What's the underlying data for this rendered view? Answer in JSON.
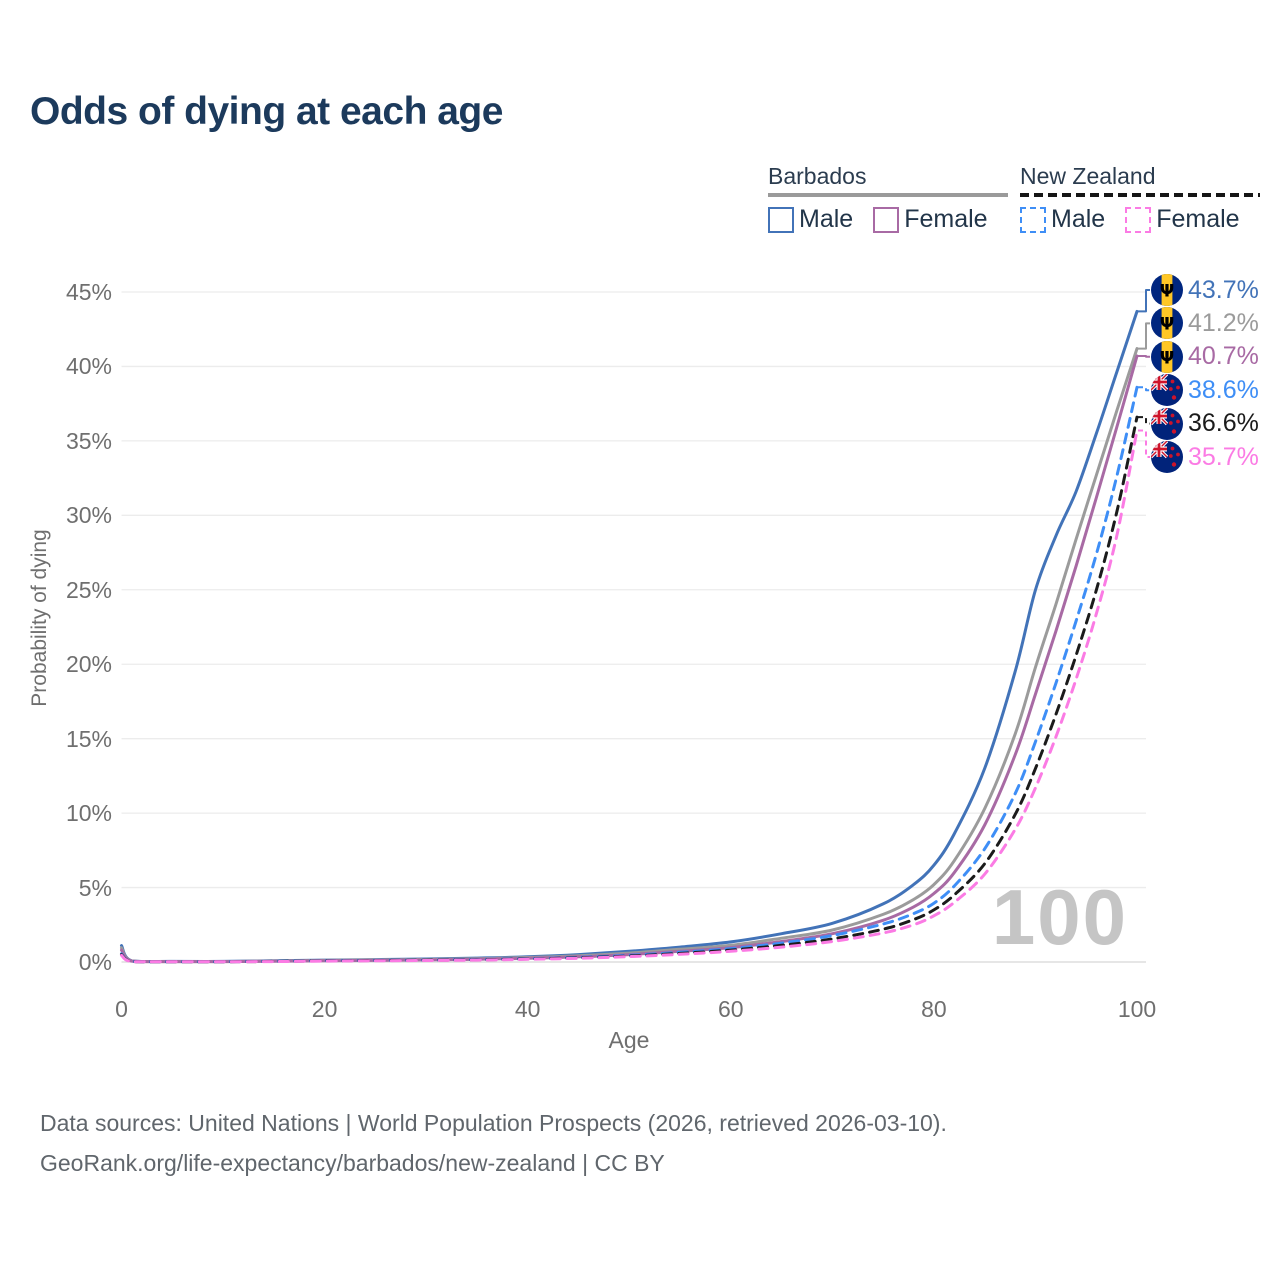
{
  "title": "Odds of dying at each age",
  "legend": {
    "groups": [
      {
        "label": "Barbados",
        "line_style": "solid",
        "underline_color": "#9a9a9a",
        "items": [
          {
            "label": "Male",
            "color": "#4273b8",
            "dashed": false
          },
          {
            "label": "Female",
            "color": "#a86aa4",
            "dashed": false
          }
        ]
      },
      {
        "label": "New Zealand",
        "line_style": "dashed",
        "underline_color": "#151515",
        "items": [
          {
            "label": "Male",
            "color": "#3e8ef6",
            "dashed": true
          },
          {
            "label": "Female",
            "color": "#fb7be4",
            "dashed": true
          }
        ]
      }
    ]
  },
  "chart_data": {
    "type": "line",
    "title": "Odds of dying at each age",
    "xlabel": "Age",
    "ylabel": "Probability of dying",
    "xlim": [
      0,
      100
    ],
    "ylim": [
      0,
      45
    ],
    "x_ticks": [
      {
        "v": 0,
        "label": "0"
      },
      {
        "v": 20,
        "label": "20"
      },
      {
        "v": 40,
        "label": "40"
      },
      {
        "v": 60,
        "label": "60"
      },
      {
        "v": 80,
        "label": "80"
      },
      {
        "v": 100,
        "label": "100"
      }
    ],
    "y_ticks": [
      {
        "v": 0,
        "label": "0%"
      },
      {
        "v": 5,
        "label": "5%"
      },
      {
        "v": 10,
        "label": "10%"
      },
      {
        "v": 15,
        "label": "15%"
      },
      {
        "v": 20,
        "label": "20%"
      },
      {
        "v": 25,
        "label": "25%"
      },
      {
        "v": 30,
        "label": "30%"
      },
      {
        "v": 35,
        "label": "35%"
      },
      {
        "v": 40,
        "label": "40%"
      },
      {
        "v": 45,
        "label": "45%"
      }
    ],
    "grid": "horizontal",
    "legend_position": "top-right",
    "watermark": "100",
    "series": [
      {
        "name": "Barbados Male",
        "country": "Barbados",
        "sex": "Male",
        "flag": "barbados",
        "color": "#4273b8",
        "dashed": false,
        "end_value": 43.7,
        "end_label": "43.7%",
        "points": [
          [
            0,
            1.1
          ],
          [
            1,
            0.08
          ],
          [
            5,
            0.04
          ],
          [
            10,
            0.04
          ],
          [
            15,
            0.08
          ],
          [
            20,
            0.13
          ],
          [
            25,
            0.16
          ],
          [
            30,
            0.2
          ],
          [
            35,
            0.26
          ],
          [
            40,
            0.35
          ],
          [
            45,
            0.5
          ],
          [
            50,
            0.72
          ],
          [
            55,
            1.0
          ],
          [
            60,
            1.35
          ],
          [
            65,
            1.9
          ],
          [
            70,
            2.6
          ],
          [
            75,
            3.9
          ],
          [
            78,
            5.2
          ],
          [
            80,
            6.5
          ],
          [
            82,
            8.6
          ],
          [
            85,
            13.0
          ],
          [
            88,
            19.5
          ],
          [
            90,
            25.0
          ],
          [
            92,
            28.6
          ],
          [
            94,
            31.6
          ],
          [
            96,
            35.5
          ],
          [
            98,
            39.6
          ],
          [
            100,
            43.7
          ]
        ]
      },
      {
        "name": "Barbados Both sexes",
        "country": "Barbados",
        "sex": "Both",
        "flag": "barbados",
        "color": "#9b9b9b",
        "dashed": false,
        "end_value": 41.2,
        "end_label": "41.2%",
        "points": [
          [
            0,
            0.95
          ],
          [
            1,
            0.07
          ],
          [
            5,
            0.03
          ],
          [
            10,
            0.03
          ],
          [
            15,
            0.07
          ],
          [
            20,
            0.11
          ],
          [
            25,
            0.14
          ],
          [
            30,
            0.17
          ],
          [
            35,
            0.22
          ],
          [
            40,
            0.3
          ],
          [
            45,
            0.42
          ],
          [
            50,
            0.6
          ],
          [
            55,
            0.85
          ],
          [
            60,
            1.12
          ],
          [
            65,
            1.6
          ],
          [
            70,
            2.15
          ],
          [
            75,
            3.2
          ],
          [
            78,
            4.2
          ],
          [
            80,
            5.2
          ],
          [
            82,
            6.8
          ],
          [
            85,
            10.3
          ],
          [
            88,
            15.3
          ],
          [
            90,
            19.8
          ],
          [
            92,
            24.0
          ],
          [
            94,
            28.4
          ],
          [
            96,
            32.7
          ],
          [
            98,
            37.0
          ],
          [
            100,
            41.2
          ]
        ]
      },
      {
        "name": "Barbados Female",
        "country": "Barbados",
        "sex": "Female",
        "flag": "barbados",
        "color": "#a86aa4",
        "dashed": false,
        "end_value": 40.7,
        "end_label": "40.7%",
        "points": [
          [
            0,
            0.8
          ],
          [
            1,
            0.06
          ],
          [
            5,
            0.03
          ],
          [
            10,
            0.03
          ],
          [
            15,
            0.05
          ],
          [
            20,
            0.08
          ],
          [
            25,
            0.11
          ],
          [
            30,
            0.14
          ],
          [
            35,
            0.18
          ],
          [
            40,
            0.25
          ],
          [
            45,
            0.35
          ],
          [
            50,
            0.5
          ],
          [
            55,
            0.72
          ],
          [
            60,
            0.97
          ],
          [
            65,
            1.38
          ],
          [
            70,
            1.9
          ],
          [
            75,
            2.8
          ],
          [
            78,
            3.7
          ],
          [
            80,
            4.6
          ],
          [
            82,
            6.0
          ],
          [
            85,
            9.2
          ],
          [
            88,
            13.9
          ],
          [
            90,
            18.0
          ],
          [
            92,
            22.2
          ],
          [
            94,
            26.6
          ],
          [
            96,
            31.2
          ],
          [
            98,
            35.9
          ],
          [
            100,
            40.7
          ]
        ]
      },
      {
        "name": "New Zealand Male",
        "country": "New Zealand",
        "sex": "Male",
        "flag": "nz",
        "color": "#3e8ef6",
        "dashed": true,
        "end_value": 38.6,
        "end_label": "38.6%",
        "points": [
          [
            0,
            0.55
          ],
          [
            1,
            0.04
          ],
          [
            5,
            0.02
          ],
          [
            10,
            0.02
          ],
          [
            15,
            0.05
          ],
          [
            20,
            0.09
          ],
          [
            25,
            0.11
          ],
          [
            30,
            0.13
          ],
          [
            35,
            0.17
          ],
          [
            40,
            0.22
          ],
          [
            45,
            0.31
          ],
          [
            50,
            0.45
          ],
          [
            55,
            0.65
          ],
          [
            60,
            0.9
          ],
          [
            65,
            1.27
          ],
          [
            70,
            1.78
          ],
          [
            75,
            2.55
          ],
          [
            78,
            3.25
          ],
          [
            80,
            3.95
          ],
          [
            82,
            5.1
          ],
          [
            85,
            7.6
          ],
          [
            88,
            11.3
          ],
          [
            90,
            14.8
          ],
          [
            92,
            18.7
          ],
          [
            94,
            22.9
          ],
          [
            96,
            27.4
          ],
          [
            98,
            32.6
          ],
          [
            100,
            38.6
          ]
        ]
      },
      {
        "name": "New Zealand Both sexes",
        "country": "New Zealand",
        "sex": "Both",
        "flag": "nz",
        "color": "#1b1b1b",
        "dashed": true,
        "end_value": 36.6,
        "end_label": "36.6%",
        "points": [
          [
            0,
            0.5
          ],
          [
            1,
            0.04
          ],
          [
            5,
            0.02
          ],
          [
            10,
            0.02
          ],
          [
            15,
            0.04
          ],
          [
            20,
            0.08
          ],
          [
            25,
            0.1
          ],
          [
            30,
            0.12
          ],
          [
            35,
            0.15
          ],
          [
            40,
            0.2
          ],
          [
            45,
            0.28
          ],
          [
            50,
            0.4
          ],
          [
            55,
            0.58
          ],
          [
            60,
            0.8
          ],
          [
            65,
            1.12
          ],
          [
            70,
            1.55
          ],
          [
            75,
            2.2
          ],
          [
            78,
            2.85
          ],
          [
            80,
            3.5
          ],
          [
            82,
            4.5
          ],
          [
            85,
            6.6
          ],
          [
            88,
            9.9
          ],
          [
            90,
            13.0
          ],
          [
            92,
            16.6
          ],
          [
            94,
            20.6
          ],
          [
            96,
            25.0
          ],
          [
            98,
            30.2
          ],
          [
            100,
            36.6
          ]
        ]
      },
      {
        "name": "New Zealand Female",
        "country": "New Zealand",
        "sex": "Female",
        "flag": "nz",
        "color": "#fb7be4",
        "dashed": true,
        "end_value": 35.7,
        "end_label": "35.7%",
        "points": [
          [
            0,
            0.45
          ],
          [
            1,
            0.03
          ],
          [
            5,
            0.02
          ],
          [
            10,
            0.02
          ],
          [
            15,
            0.03
          ],
          [
            20,
            0.06
          ],
          [
            25,
            0.08
          ],
          [
            30,
            0.1
          ],
          [
            35,
            0.13
          ],
          [
            40,
            0.18
          ],
          [
            45,
            0.25
          ],
          [
            50,
            0.36
          ],
          [
            55,
            0.52
          ],
          [
            60,
            0.72
          ],
          [
            65,
            1.0
          ],
          [
            70,
            1.38
          ],
          [
            75,
            1.95
          ],
          [
            78,
            2.5
          ],
          [
            80,
            3.1
          ],
          [
            82,
            4.0
          ],
          [
            85,
            5.9
          ],
          [
            88,
            8.9
          ],
          [
            90,
            11.7
          ],
          [
            92,
            15.1
          ],
          [
            94,
            19.0
          ],
          [
            96,
            23.4
          ],
          [
            98,
            28.6
          ],
          [
            100,
            35.7
          ]
        ]
      }
    ]
  },
  "footer": {
    "line1": "Data sources: United Nations | World Population Prospects (2026, retrieved 2026-03-10).",
    "line2": "GeoRank.org/life-expectancy/barbados/new-zealand | CC BY"
  }
}
